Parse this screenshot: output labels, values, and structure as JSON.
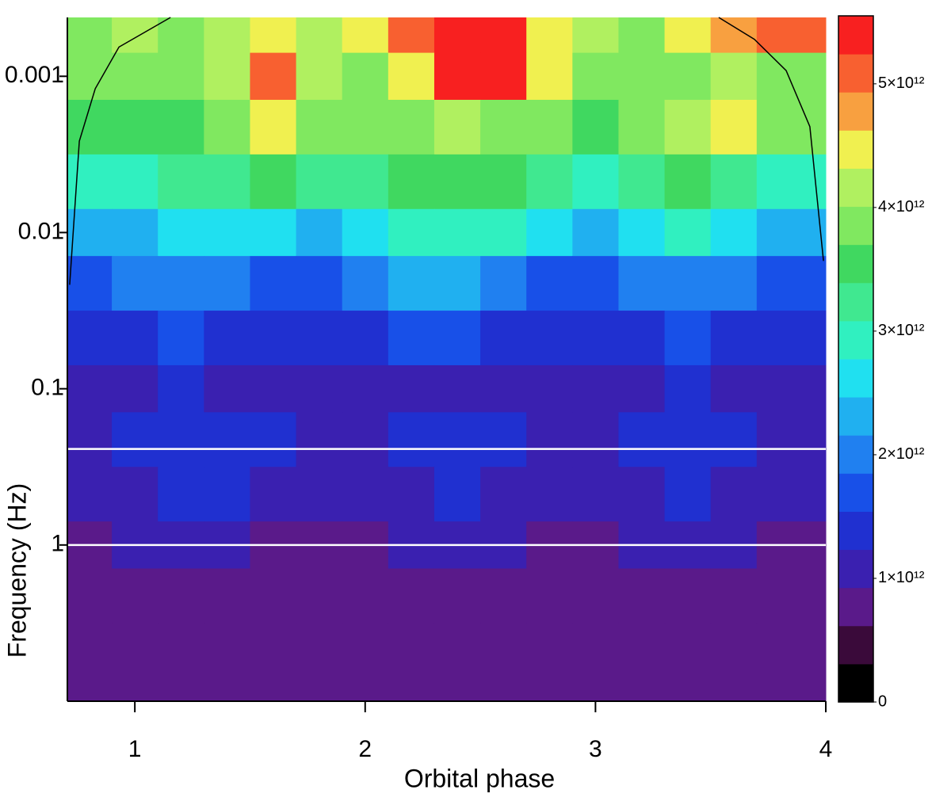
{
  "chart_data": {
    "type": "heatmap",
    "xlabel": "Orbital phase",
    "ylabel": "Frequency (Hz)",
    "xlim": [
      0.707,
      4
    ],
    "xticks": [
      1,
      2,
      3,
      4
    ],
    "ylim": [
      10,
      0.00042
    ],
    "ylog": true,
    "yticks": [
      0.001,
      0.01,
      0.1,
      1
    ],
    "x": [
      0.8,
      1.0,
      1.2,
      1.4,
      1.6,
      1.8,
      2.0,
      2.2,
      2.4,
      2.6,
      2.8,
      3.0,
      3.2,
      3.4,
      3.6,
      3.8
    ],
    "y": [
      0.0005,
      0.001,
      0.002,
      0.005,
      0.01,
      0.02,
      0.05,
      0.1,
      0.2,
      0.5,
      1,
      2,
      5
    ],
    "z": [
      [
        4000000000000.0,
        4200000000000.0,
        4000000000000.0,
        4200000000000.0,
        4500000000000.0,
        4300000000000.0,
        4400000000000.0,
        5000000000000.0,
        5400000000000.0,
        5400000000000.0,
        4600000000000.0,
        4200000000000.0,
        4000000000000.0,
        4400000000000.0,
        4800000000000.0,
        5200000000000.0
      ],
      [
        3800000000000.0,
        4000000000000.0,
        3800000000000.0,
        4300000000000.0,
        5000000000000.0,
        4200000000000.0,
        4000000000000.0,
        4500000000000.0,
        5300000000000.0,
        5300000000000.0,
        4500000000000.0,
        4000000000000.0,
        3800000000000.0,
        4000000000000.0,
        4200000000000.0,
        4000000000000.0
      ],
      [
        3400000000000.0,
        3600000000000.0,
        3500000000000.0,
        3800000000000.0,
        4600000000000.0,
        3900000000000.0,
        3700000000000.0,
        3900000000000.0,
        4200000000000.0,
        4000000000000.0,
        3800000000000.0,
        3600000000000.0,
        3800000000000.0,
        4300000000000.0,
        4400000000000.0,
        3800000000000.0
      ],
      [
        2800000000000.0,
        3000000000000.0,
        3200000000000.0,
        3300000000000.0,
        3400000000000.0,
        3200000000000.0,
        3200000000000.0,
        3400000000000.0,
        3500000000000.0,
        3400000000000.0,
        3200000000000.0,
        3000000000000.0,
        3200000000000.0,
        3400000000000.0,
        3300000000000.0,
        3000000000000.0
      ],
      [
        2200000000000.0,
        2400000000000.0,
        2600000000000.0,
        2700000000000.0,
        2600000000000.0,
        2300000000000.0,
        2600000000000.0,
        2800000000000.0,
        3000000000000.0,
        2800000000000.0,
        2500000000000.0,
        2300000000000.0,
        2500000000000.0,
        2800000000000.0,
        2700000000000.0,
        2300000000000.0
      ],
      [
        1800000000000.0,
        1900000000000.0,
        2100000000000.0,
        2000000000000.0,
        1800000000000.0,
        1600000000000.0,
        1900000000000.0,
        2200000000000.0,
        2300000000000.0,
        2000000000000.0,
        1700000000000.0,
        1600000000000.0,
        1900000000000.0,
        2100000000000.0,
        2000000000000.0,
        1800000000000.0
      ],
      [
        1500000000000.0,
        1500000000000.0,
        1600000000000.0,
        1500000000000.0,
        1400000000000.0,
        1300000000000.0,
        1400000000000.0,
        1600000000000.0,
        1600000000000.0,
        1500000000000.0,
        1300000000000.0,
        1300000000000.0,
        1500000000000.0,
        1600000000000.0,
        1500000000000.0,
        1400000000000.0
      ],
      [
        1200000000000.0,
        1200000000000.0,
        1300000000000.0,
        1200000000000.0,
        1100000000000.0,
        1100000000000.0,
        1100000000000.0,
        1200000000000.0,
        1200000000000.0,
        1200000000000.0,
        1100000000000.0,
        1100000000000.0,
        1200000000000.0,
        1300000000000.0,
        1200000000000.0,
        1200000000000.0
      ],
      [
        1200000000000.0,
        1300000000000.0,
        1500000000000.0,
        1400000000000.0,
        1400000000000.0,
        1200000000000.0,
        1200000000000.0,
        1400000000000.0,
        1500000000000.0,
        1500000000000.0,
        1200000000000.0,
        1200000000000.0,
        1500000000000.0,
        1500000000000.0,
        1400000000000.0,
        1200000000000.0
      ],
      [
        1100000000000.0,
        1200000000000.0,
        1300000000000.0,
        1300000000000.0,
        1200000000000.0,
        1100000000000.0,
        1100000000000.0,
        1200000000000.0,
        1300000000000.0,
        1200000000000.0,
        1100000000000.0,
        1100000000000.0,
        1200000000000.0,
        1300000000000.0,
        1200000000000.0,
        1100000000000.0
      ],
      [
        900000000000.0,
        1000000000000.0,
        1000000000000.0,
        1000000000000.0,
        900000000000.0,
        900000000000.0,
        900000000000.0,
        1000000000000.0,
        1000000000000.0,
        1000000000000.0,
        900000000000.0,
        900000000000.0,
        1000000000000.0,
        1000000000000.0,
        1000000000000.0,
        900000000000.0
      ],
      [
        800000000000.0,
        900000000000.0,
        900000000000.0,
        900000000000.0,
        800000000000.0,
        800000000000.0,
        800000000000.0,
        900000000000.0,
        900000000000.0,
        900000000000.0,
        800000000000.0,
        800000000000.0,
        900000000000.0,
        900000000000.0,
        900000000000.0,
        800000000000.0
      ],
      [
        700000000000.0,
        800000000000.0,
        800000000000.0,
        800000000000.0,
        700000000000.0,
        700000000000.0,
        700000000000.0,
        800000000000.0,
        800000000000.0,
        800000000000.0,
        700000000000.0,
        700000000000.0,
        800000000000.0,
        800000000000.0,
        800000000000.0,
        700000000000.0
      ]
    ],
    "clim": [
      0,
      5550000000000.0
    ],
    "colorscale": [
      "#000000",
      "#3a0a3a",
      "#5a1a8a",
      "#3a20b0",
      "#2030d0",
      "#1850e8",
      "#2080f0",
      "#20b0f0",
      "#20e0f0",
      "#30f0c0",
      "#40e890",
      "#40d860",
      "#80e860",
      "#b0f060",
      "#f0f050",
      "#f8a040",
      "#f86030",
      "#f82020"
    ],
    "cticks": [
      0,
      {
        "value": 1000000000000.0,
        "label": "1×10¹²"
      },
      {
        "value": 2000000000000.0,
        "label": "2×10¹²"
      },
      {
        "value": 3000000000000.0,
        "label": "3×10¹²"
      },
      {
        "value": 4000000000000.0,
        "label": "4×10¹²"
      },
      {
        "value": 5000000000000.0,
        "label": "5×10¹²"
      }
    ],
    "hlines": [
      0.243,
      1
    ],
    "hline_color": "#ffffff",
    "coi": {
      "color": "#000000",
      "x": [
        0.717,
        0.759,
        0.828,
        0.931,
        1.155,
        null,
        3.535,
        3.69,
        3.828,
        3.931,
        3.99
      ],
      "y": [
        0.0216,
        0.0026,
        0.0012,
        0.00065,
        0.00042,
        null,
        0.00042,
        0.00058,
        0.00092,
        0.0021,
        0.0152
      ]
    }
  }
}
